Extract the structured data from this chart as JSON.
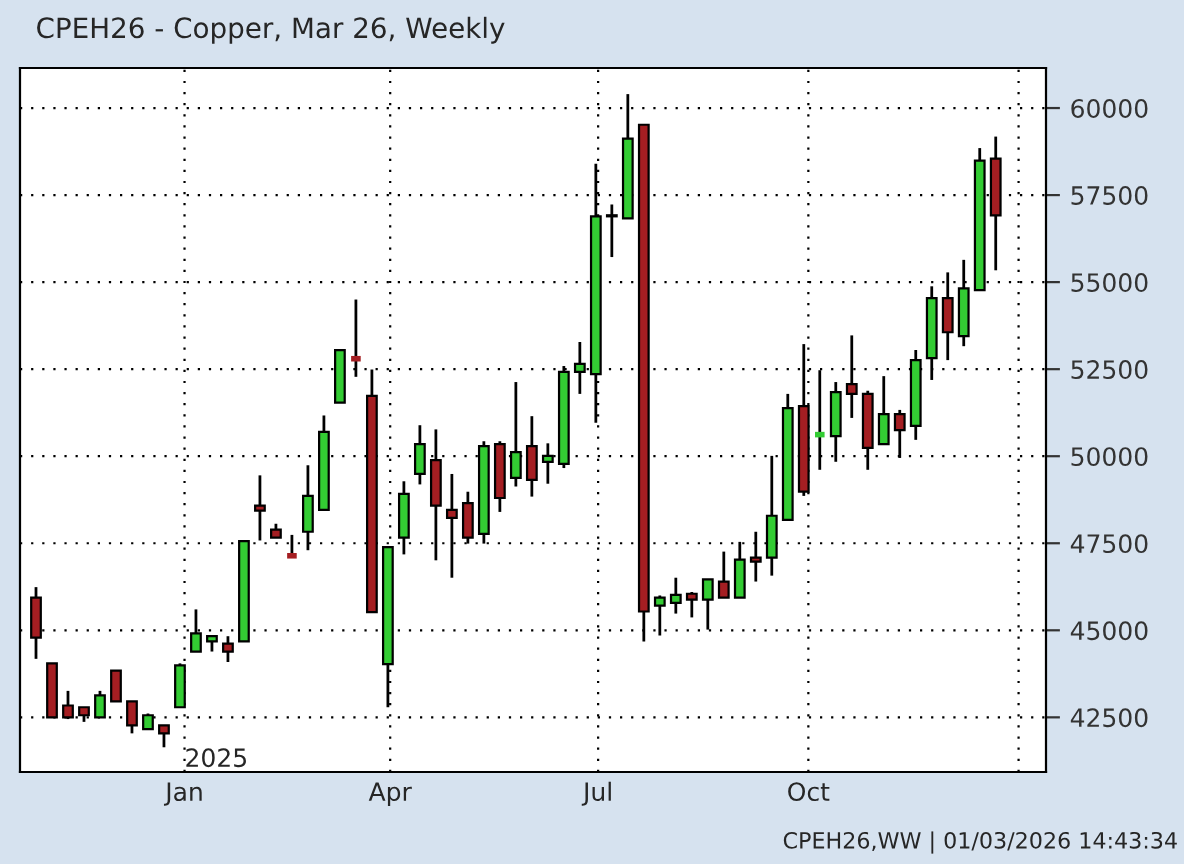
{
  "chart_data": {
    "type": "candlestick",
    "title": "CPEH26 - Copper, Mar 26, Weekly",
    "x": [
      "2024-10-28",
      "2024-11-04",
      "2024-11-11",
      "2024-11-18",
      "2024-11-25",
      "2024-12-02",
      "2024-12-09",
      "2024-12-16",
      "2024-12-23",
      "2024-12-30",
      "2025-01-06",
      "2025-01-13",
      "2025-01-20",
      "2025-01-27",
      "2025-02-03",
      "2025-02-10",
      "2025-02-17",
      "2025-02-24",
      "2025-03-03",
      "2025-03-10",
      "2025-03-17",
      "2025-03-24",
      "2025-03-31",
      "2025-04-07",
      "2025-04-14",
      "2025-04-21",
      "2025-04-28",
      "2025-05-05",
      "2025-05-12",
      "2025-05-19",
      "2025-05-26",
      "2025-06-02",
      "2025-06-09",
      "2025-06-16",
      "2025-06-23",
      "2025-06-30",
      "2025-07-07",
      "2025-07-14",
      "2025-07-21",
      "2025-07-28",
      "2025-08-04",
      "2025-08-11",
      "2025-08-18",
      "2025-08-25",
      "2025-09-01",
      "2025-09-08",
      "2025-09-15",
      "2025-09-22",
      "2025-09-29",
      "2025-10-06",
      "2025-10-13",
      "2025-10-20",
      "2025-10-27",
      "2025-11-03",
      "2025-11-10",
      "2025-11-17",
      "2025-11-24",
      "2025-12-01",
      "2025-12-08",
      "2025-12-15",
      "2025-12-22"
    ],
    "ohlc": [
      [
        45940,
        46240,
        44180,
        44790
      ],
      [
        44050,
        44050,
        42480,
        42500
      ],
      [
        42840,
        43260,
        42450,
        42500
      ],
      [
        42790,
        42790,
        42370,
        42560
      ],
      [
        42500,
        43260,
        42500,
        43130
      ],
      [
        43840,
        43840,
        42960,
        42960
      ],
      [
        42960,
        42960,
        42040,
        42270
      ],
      [
        42160,
        42610,
        42160,
        42560
      ],
      [
        42270,
        42270,
        41640,
        42040
      ],
      [
        42790,
        44050,
        42790,
        43990
      ],
      [
        44390,
        45600,
        44390,
        44910
      ],
      [
        44680,
        44830,
        44390,
        44830
      ],
      [
        44620,
        44830,
        44090,
        44390
      ],
      [
        44680,
        47560,
        44680,
        47560
      ],
      [
        48580,
        49450,
        47580,
        48440
      ],
      [
        47890,
        48060,
        47660,
        47660
      ],
      [
        47140,
        47740,
        47140,
        47140
      ],
      [
        47830,
        49740,
        47300,
        48860
      ],
      [
        48460,
        51170,
        48460,
        50700
      ],
      [
        51540,
        53050,
        51540,
        53050
      ],
      [
        52800,
        54500,
        52280,
        52800
      ],
      [
        51730,
        52490,
        45520,
        45520
      ],
      [
        44030,
        47390,
        42790,
        47390
      ],
      [
        47660,
        49280,
        47180,
        48920
      ],
      [
        49490,
        50890,
        49190,
        50350
      ],
      [
        49890,
        50770,
        47010,
        48580
      ],
      [
        48460,
        49490,
        46510,
        48230
      ],
      [
        48650,
        48980,
        47490,
        47660
      ],
      [
        47770,
        50430,
        47490,
        50290
      ],
      [
        50350,
        50430,
        48400,
        48800
      ],
      [
        49380,
        52130,
        49130,
        50120
      ],
      [
        50290,
        51150,
        48840,
        49320
      ],
      [
        49840,
        50370,
        49210,
        50010
      ],
      [
        49780,
        52590,
        49660,
        52420
      ],
      [
        52420,
        53280,
        51790,
        52650
      ],
      [
        52360,
        58400,
        50960,
        56890
      ],
      [
        56890,
        57230,
        55720,
        56920
      ],
      [
        56830,
        60400,
        56830,
        59120
      ],
      [
        59520,
        59520,
        44680,
        45540
      ],
      [
        45710,
        46000,
        44850,
        45940
      ],
      [
        45790,
        46510,
        45480,
        46020
      ],
      [
        46050,
        46100,
        45370,
        45880
      ],
      [
        45880,
        46460,
        45020,
        46460
      ],
      [
        46400,
        47260,
        45940,
        45940
      ],
      [
        45940,
        47540,
        45940,
        47030
      ],
      [
        47090,
        47830,
        46400,
        46970
      ],
      [
        47090,
        50010,
        46570,
        48290
      ],
      [
        48170,
        51790,
        48170,
        51380
      ],
      [
        51440,
        53220,
        48860,
        48980
      ],
      [
        50620,
        52470,
        49610,
        50620
      ],
      [
        50580,
        52130,
        49840,
        51840
      ],
      [
        52070,
        53470,
        51100,
        51790
      ],
      [
        51790,
        51880,
        49610,
        50240
      ],
      [
        50350,
        52300,
        50350,
        51210
      ],
      [
        51210,
        51330,
        49950,
        50750
      ],
      [
        50870,
        53050,
        50470,
        52760
      ],
      [
        52820,
        54880,
        52190,
        54540
      ],
      [
        54540,
        55280,
        52760,
        53560
      ],
      [
        53450,
        55640,
        53160,
        54820
      ],
      [
        54770,
        58850,
        54770,
        58490
      ],
      [
        58550,
        59180,
        55340,
        56920
      ]
    ],
    "colors": [
      "#a41e22",
      "#a41e22",
      "#a41e22",
      "#a41e22",
      "#33cc33",
      "#a41e22",
      "#a41e22",
      "#33cc33",
      "#a41e22",
      "#33cc33",
      "#33cc33",
      "#33cc33",
      "#a41e22",
      "#33cc33",
      "#a41e22",
      "#a41e22",
      "#a41e22",
      "#33cc33",
      "#33cc33",
      "#33cc33",
      "#a41e22",
      "#a41e22",
      "#33cc33",
      "#33cc33",
      "#33cc33",
      "#a41e22",
      "#a41e22",
      "#a41e22",
      "#33cc33",
      "#a41e22",
      "#33cc33",
      "#a41e22",
      "#33cc33",
      "#33cc33",
      "#33cc33",
      "#33cc33",
      "#33cc33",
      "#33cc33",
      "#a41e22",
      "#33cc33",
      "#33cc33",
      "#a41e22",
      "#33cc33",
      "#a41e22",
      "#33cc33",
      "#a41e22",
      "#33cc33",
      "#33cc33",
      "#a41e22",
      "#33cc33",
      "#33cc33",
      "#a41e22",
      "#a41e22",
      "#33cc33",
      "#a41e22",
      "#33cc33",
      "#33cc33",
      "#a41e22",
      "#33cc33",
      "#33cc33",
      "#a41e22"
    ],
    "xlim": [
      "2024-10-21",
      "2026-01-13"
    ],
    "xticks": [
      {
        "value": "2025-01-01",
        "label": "Jan"
      },
      {
        "value": "2025-04-01",
        "label": "Apr"
      },
      {
        "value": "2025-07-01",
        "label": "Jul"
      },
      {
        "value": "2025-10-01",
        "label": "Oct"
      },
      {
        "value": "2026-01-01",
        "label": null
      }
    ],
    "ylim": [
      40930,
      61150
    ],
    "yticks": [
      42500,
      45000,
      47500,
      50000,
      52500,
      55000,
      57500,
      60000
    ],
    "grid": true,
    "annotations": [
      "2025",
      "CPEH26,WW | 01/03/2026 14:43:34"
    ]
  }
}
